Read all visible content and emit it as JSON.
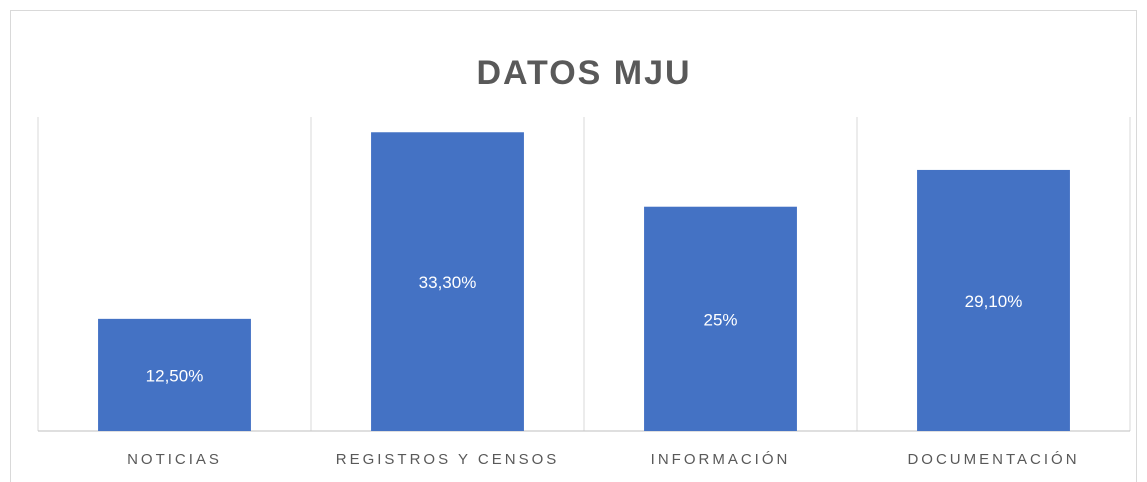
{
  "chart_data": {
    "type": "bar",
    "title": "DATOS  MJU",
    "categories": [
      "NOTICIAS",
      "REGISTROS Y CENSOS",
      "INFORMACIÓN",
      "DOCUMENTACIÓN"
    ],
    "values": [
      12.5,
      33.3,
      25,
      29.1
    ],
    "value_labels": [
      "12,50%",
      "33,30%",
      "25%",
      "29,10%"
    ],
    "color": "#4472c4",
    "ylim": [
      0,
      35
    ]
  }
}
